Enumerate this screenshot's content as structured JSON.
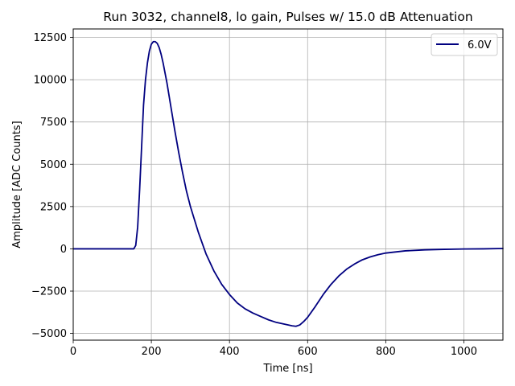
{
  "chart_data": {
    "type": "line",
    "title": "Run 3032, channel8, lo gain, Pulses w/ 15.0 dB Attenuation",
    "xlabel": "Time [ns]",
    "ylabel": "Amplitude [ADC Counts]",
    "xlim": [
      0,
      1100
    ],
    "ylim": [
      -5400,
      13000
    ],
    "x_ticks": [
      0,
      200,
      400,
      600,
      800,
      1000
    ],
    "x_tick_labels": [
      "0",
      "200",
      "400",
      "600",
      "800",
      "1000"
    ],
    "y_ticks": [
      -5000,
      -2500,
      0,
      2500,
      5000,
      7500,
      10000,
      12500
    ],
    "y_tick_labels": [
      "−5000",
      "−2500",
      "0",
      "2500",
      "5000",
      "7500",
      "10000",
      "12500"
    ],
    "grid": true,
    "legend_position": "top-right",
    "series": [
      {
        "name": "6.0V",
        "color": "#000080",
        "x": [
          0,
          100,
          150,
          155,
          160,
          165,
          170,
          175,
          180,
          185,
          190,
          195,
          200,
          205,
          210,
          215,
          220,
          225,
          230,
          235,
          240,
          250,
          260,
          270,
          280,
          290,
          300,
          320,
          340,
          360,
          380,
          400,
          420,
          440,
          460,
          480,
          500,
          520,
          540,
          560,
          570,
          580,
          590,
          600,
          620,
          640,
          660,
          680,
          700,
          720,
          740,
          760,
          780,
          800,
          850,
          900,
          950,
          1000,
          1050,
          1100
        ],
        "y": [
          0,
          0,
          0,
          0,
          200,
          1300,
          3500,
          6000,
          8500,
          10000,
          11000,
          11700,
          12100,
          12250,
          12250,
          12150,
          11900,
          11500,
          11000,
          10400,
          9800,
          8400,
          7000,
          5700,
          4500,
          3400,
          2500,
          1000,
          -300,
          -1300,
          -2100,
          -2700,
          -3200,
          -3550,
          -3800,
          -4000,
          -4200,
          -4350,
          -4450,
          -4550,
          -4580,
          -4500,
          -4300,
          -4050,
          -3400,
          -2700,
          -2100,
          -1600,
          -1200,
          -900,
          -650,
          -480,
          -350,
          -250,
          -120,
          -60,
          -30,
          -10,
          0,
          20
        ]
      }
    ]
  }
}
